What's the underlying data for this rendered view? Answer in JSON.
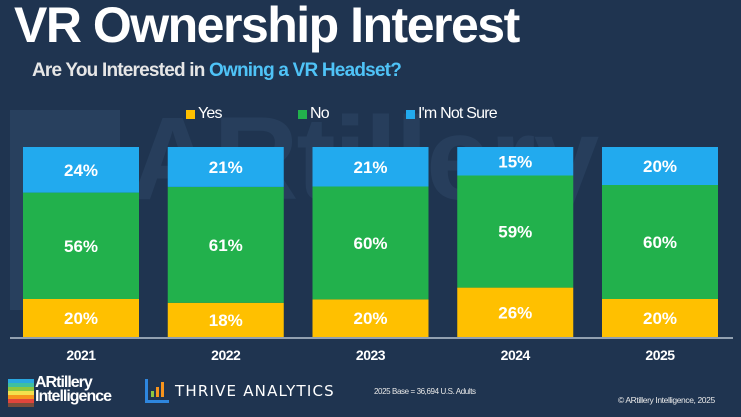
{
  "header": {
    "title": "VR Ownership Interest",
    "subtitle_prefix": "Are You Interested in ",
    "subtitle_highlight": "Owning a VR Headset?"
  },
  "legend": [
    {
      "label": "Yes",
      "color": "#ffc000"
    },
    {
      "label": "No",
      "color": "#22b14c"
    },
    {
      "label": "I'm Not Sure",
      "color": "#22aaee"
    }
  ],
  "chart_data": {
    "type": "bar",
    "stacked": true,
    "title": "VR Ownership Interest",
    "subtitle": "Are You Interested in Owning a VR Headset?",
    "xlabel": "",
    "ylabel": "",
    "ylim": [
      0,
      100
    ],
    "grid": false,
    "legend_position": "top-center",
    "categories": [
      "2021",
      "2022",
      "2023",
      "2024",
      "2025"
    ],
    "series": [
      {
        "name": "Yes",
        "color": "#ffc000",
        "values": [
          20,
          18,
          20,
          26,
          20
        ]
      },
      {
        "name": "No",
        "color": "#22b14c",
        "values": [
          56,
          61,
          60,
          59,
          60
        ]
      },
      {
        "name": "I'm Not Sure",
        "color": "#22aaee",
        "values": [
          24,
          21,
          21,
          15,
          20
        ]
      }
    ],
    "value_suffix": "%"
  },
  "footer": {
    "logo_artillery_line1": "ARtillery",
    "logo_artillery_line2": "Intelligence",
    "logo_thrive": "THRIVE ANALYTICS",
    "base_note": "2025 Base = 36,694 U.S. Adults",
    "copyright": "© ARtillery Intelligence, 2025"
  },
  "watermark": {
    "text_line1": "ARtillery",
    "text_line2": "Intelligence"
  }
}
